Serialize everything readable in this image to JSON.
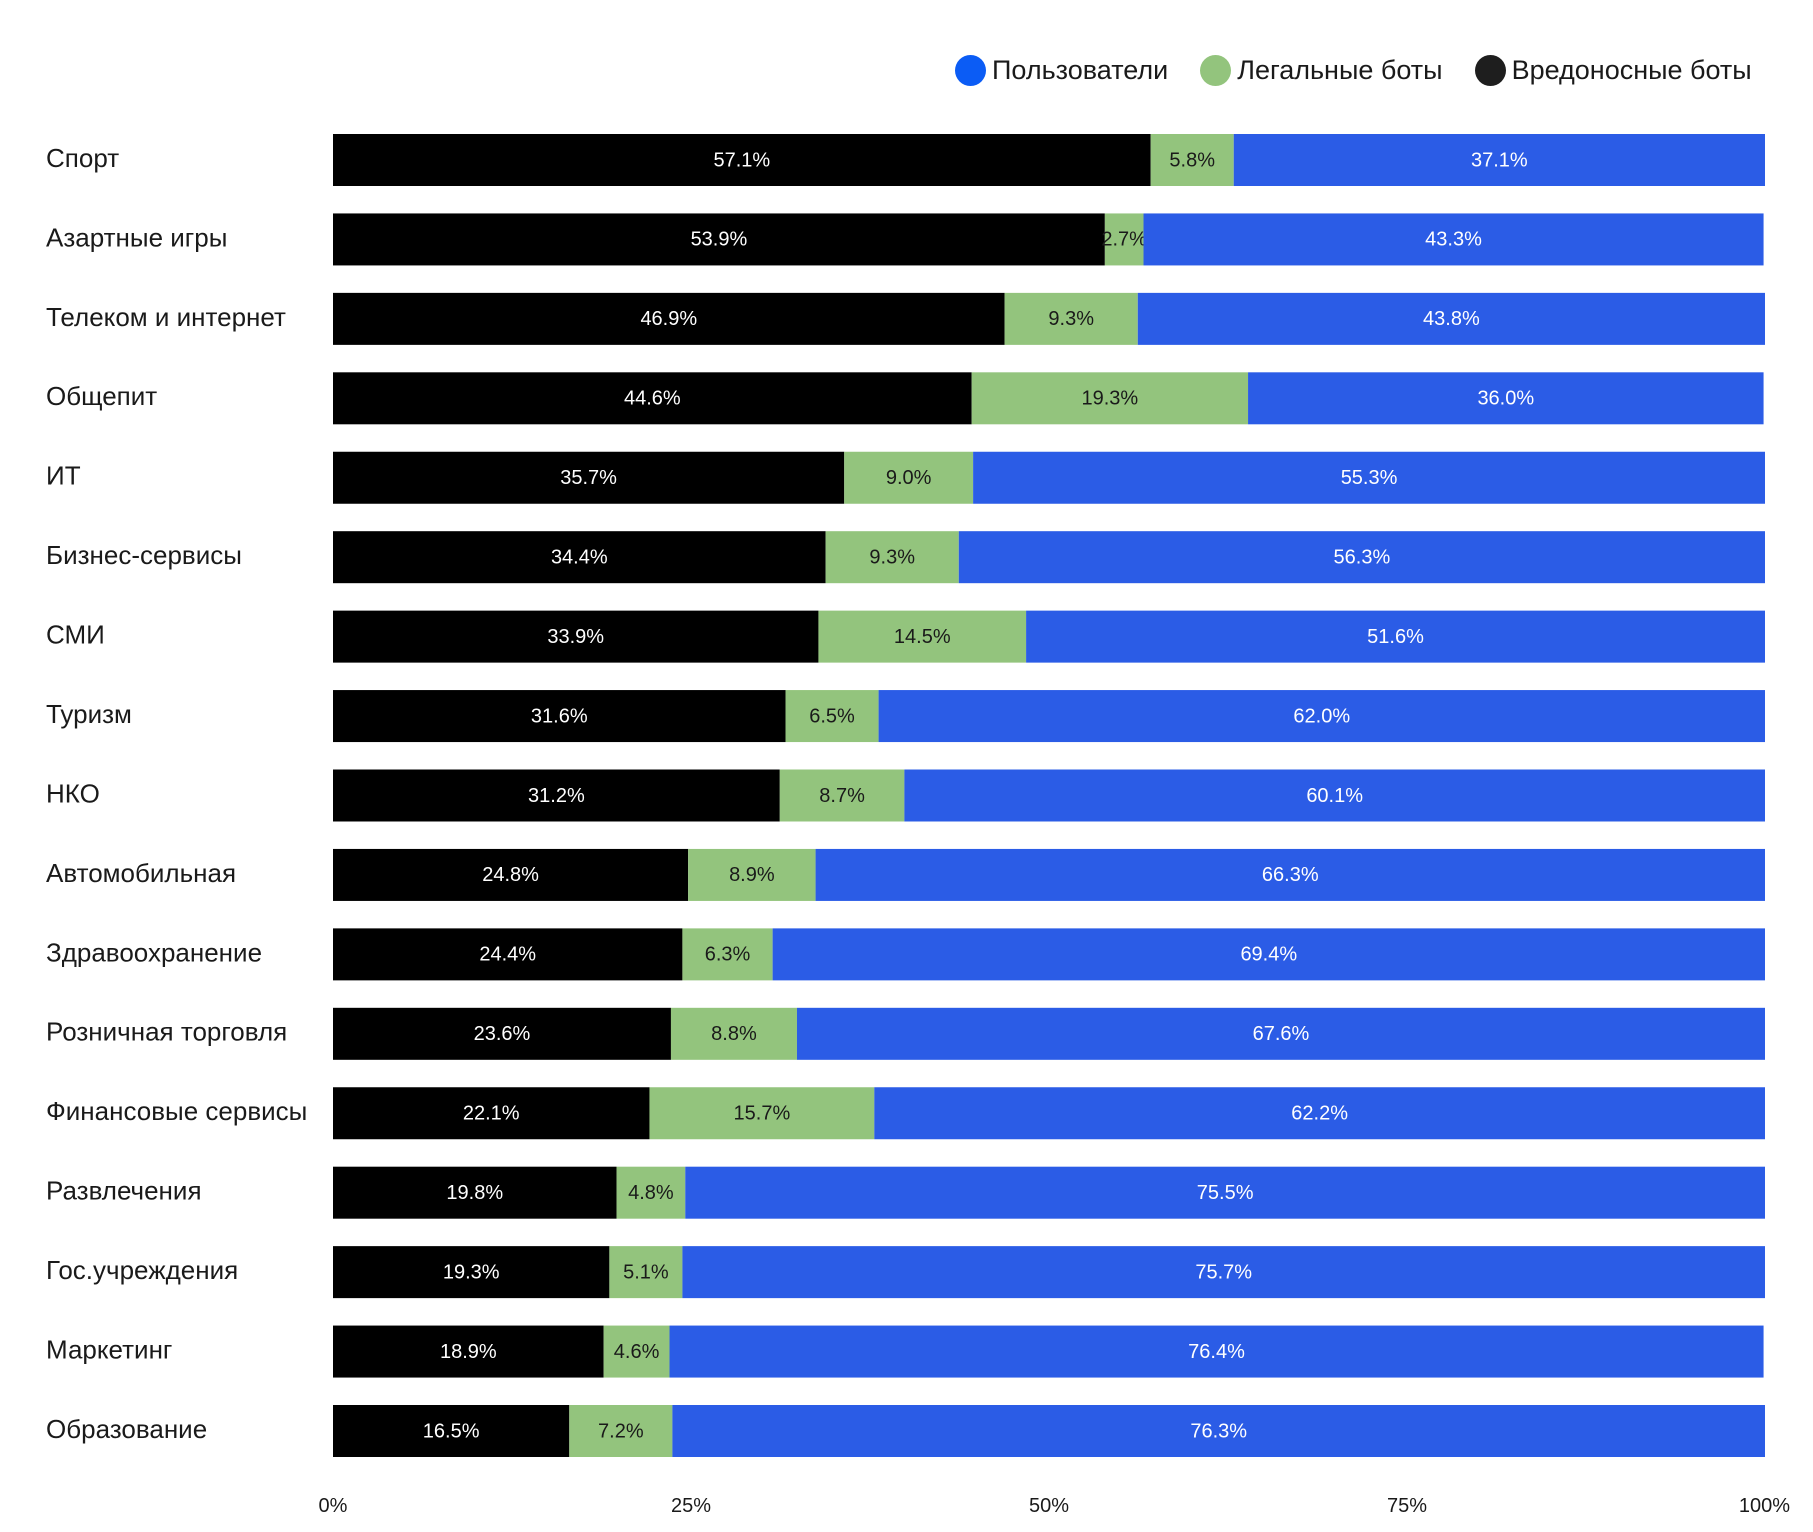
{
  "chart_data": {
    "type": "bar",
    "orientation": "horizontal",
    "stacked": "percent",
    "categories": [
      "Спорт",
      "Азартные игры",
      "Телеком и интернет",
      "Общепит",
      "ИТ",
      "Бизнес-сервисы",
      "СМИ",
      "Туризм",
      "НКО",
      "Автомобильная",
      "Здравоохранение",
      "Розничная торговля",
      "Финансовые сервисы",
      "Развлечения",
      "Гос.учреждения",
      "Маркетинг",
      "Образование"
    ],
    "series": [
      {
        "name": "Вредоносные боты",
        "color": "#000000",
        "label_color": "#ffffff",
        "values": [
          57.1,
          53.9,
          46.9,
          44.6,
          35.7,
          34.4,
          33.9,
          31.6,
          31.2,
          24.8,
          24.4,
          23.6,
          22.1,
          19.8,
          19.3,
          18.9,
          16.5
        ],
        "labels": [
          "57.1%",
          "53.9%",
          "46.9%",
          "44.6%",
          "35.7%",
          "34.4%",
          "33.9%",
          "31.6%",
          "31.2%",
          "24.8%",
          "24.4%",
          "23.6%",
          "22.1%",
          "19.8%",
          "19.3%",
          "18.9%",
          "16.5%"
        ]
      },
      {
        "name": "Легальные боты",
        "color": "#93c47d",
        "label_color": "#1a1a1a",
        "values": [
          5.8,
          2.7,
          9.3,
          19.3,
          9.0,
          9.3,
          14.5,
          6.5,
          8.7,
          8.9,
          6.3,
          8.8,
          15.7,
          4.8,
          5.1,
          4.6,
          7.2
        ],
        "labels": [
          "5.8%",
          "2.7%",
          "9.3%",
          "19.3%",
          "9.0%",
          "9.3%",
          "14.5%",
          "6.5%",
          "8.7%",
          "8.9%",
          "6.3%",
          "8.8%",
          "15.7%",
          "4.8%",
          "5.1%",
          "4.6%",
          "7.2%"
        ]
      },
      {
        "name": "Пользователи",
        "color": "#2b5ce6",
        "label_color": "#ffffff",
        "values": [
          37.1,
          43.3,
          43.8,
          36.0,
          55.3,
          56.3,
          51.6,
          62.0,
          60.1,
          66.3,
          69.4,
          67.6,
          62.2,
          75.5,
          75.7,
          76.4,
          76.3
        ],
        "labels": [
          "37.1%",
          "43.3%",
          "43.8%",
          "36.0%",
          "55.3%",
          "56.3%",
          "51.6%",
          "62.0%",
          "60.1%",
          "66.3%",
          "69.4%",
          "67.6%",
          "62.2%",
          "75.5%",
          "75.7%",
          "76.4%",
          "76.3%"
        ]
      }
    ],
    "xlim": [
      0,
      100
    ],
    "xticks": [
      "0%",
      "25%",
      "50%",
      "75%",
      "100%"
    ],
    "legend": {
      "position": "top-right",
      "items": [
        {
          "label": "Пользователи",
          "color": "#0b5cf5"
        },
        {
          "label": "Легальные боты",
          "color": "#93c47d"
        },
        {
          "label": "Вредоносные боты",
          "color": "#1e1e1e"
        }
      ]
    },
    "grid": false,
    "title": "",
    "xlabel": "",
    "ylabel": ""
  }
}
